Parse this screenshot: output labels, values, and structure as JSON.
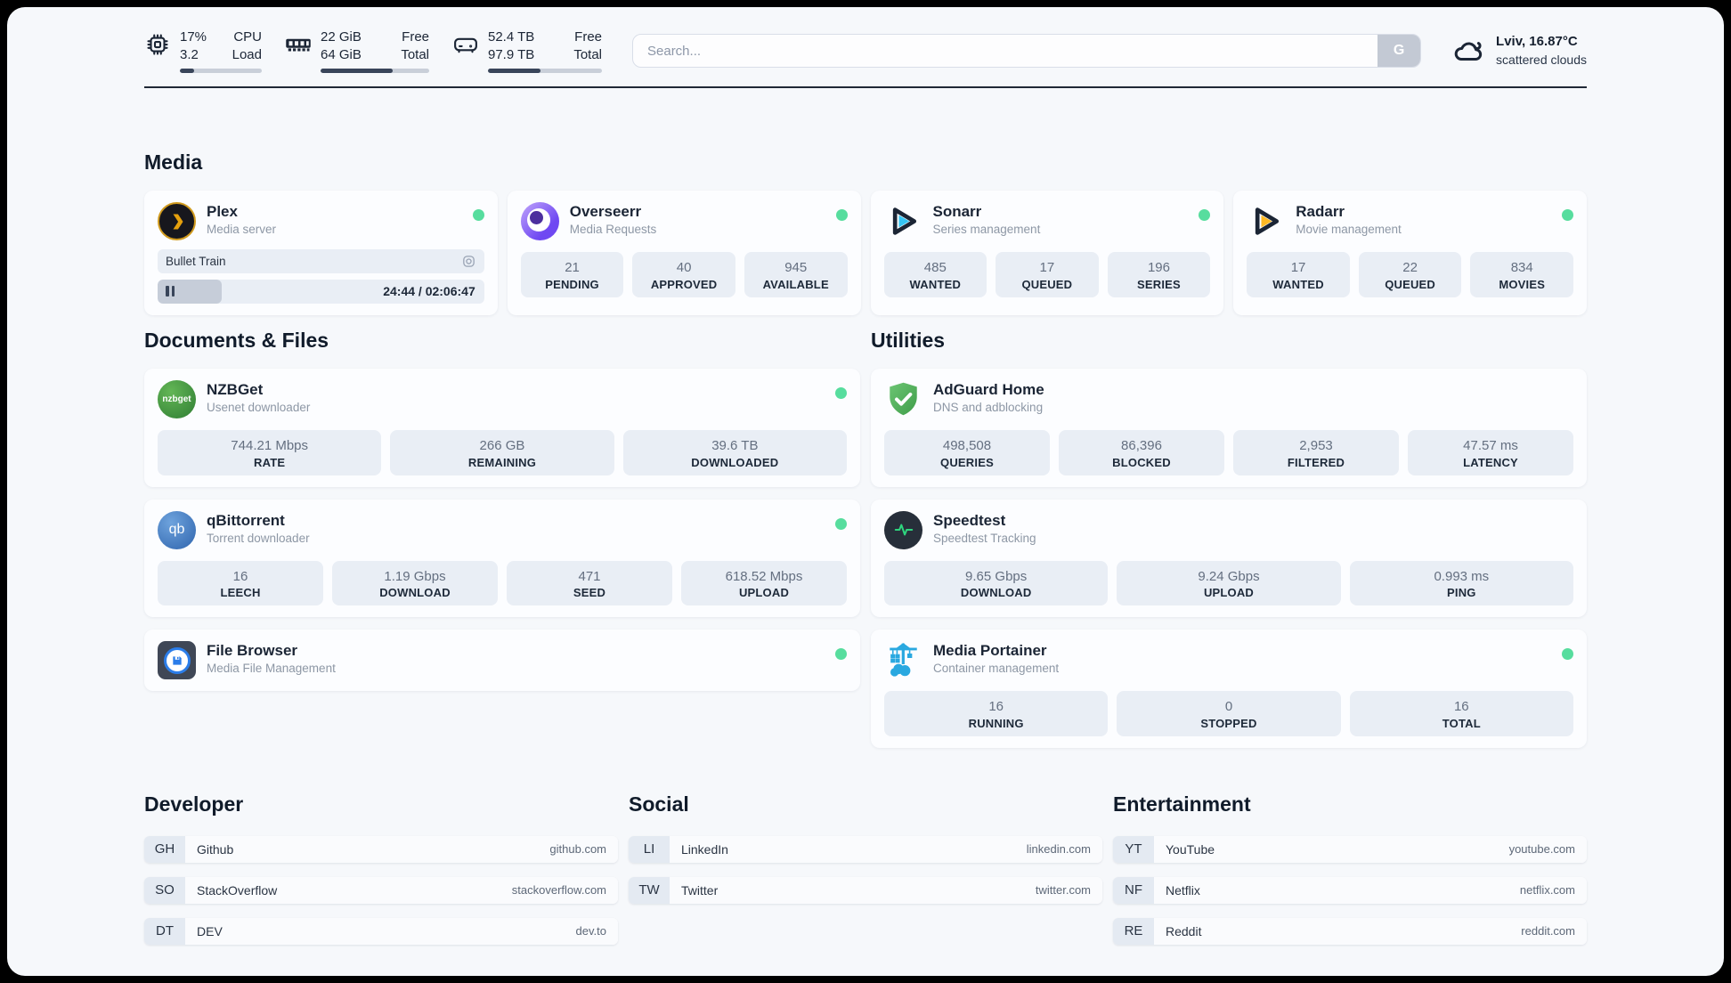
{
  "theme": {
    "page_bg": "#f6f8fb",
    "card_bg": "#fcfdff",
    "tile_bg": "#e9eef5",
    "status_online": "#57dd9e",
    "text_dark": "#1b2535",
    "text_muted": "#8d97a5",
    "progress_fill": "#39455a"
  },
  "header": {
    "cpu": {
      "line1_value": "17%",
      "line2_value": "3.2",
      "line1_label": "CPU",
      "line2_label": "Load",
      "progress_pct": 17
    },
    "ram": {
      "line1_value": "22 GiB",
      "line2_value": "64 GiB",
      "line1_label": "Free",
      "line2_label": "Total",
      "progress_pct": 66
    },
    "disk": {
      "line1_value": "52.4 TB",
      "line2_value": "97.9 TB",
      "line1_label": "Free",
      "line2_label": "Total",
      "progress_pct": 46
    },
    "search": {
      "placeholder": "Search...",
      "button_label": "G"
    },
    "weather": {
      "title": "Lviv, 16.87°C",
      "subtitle": "scattered clouds"
    }
  },
  "sections": {
    "media": {
      "title": "Media",
      "plex": {
        "name": "Plex",
        "subtitle": "Media server",
        "now_playing": "Bullet Train",
        "time_display": "24:44 / 02:06:47",
        "progress_pct": 19.5
      },
      "overseerr": {
        "name": "Overseerr",
        "subtitle": "Media Requests",
        "stats": [
          {
            "value": "21",
            "label": "PENDING"
          },
          {
            "value": "40",
            "label": "APPROVED"
          },
          {
            "value": "945",
            "label": "AVAILABLE"
          }
        ]
      },
      "sonarr": {
        "name": "Sonarr",
        "subtitle": "Series management",
        "stats": [
          {
            "value": "485",
            "label": "WANTED"
          },
          {
            "value": "17",
            "label": "QUEUED"
          },
          {
            "value": "196",
            "label": "SERIES"
          }
        ]
      },
      "radarr": {
        "name": "Radarr",
        "subtitle": "Movie management",
        "stats": [
          {
            "value": "17",
            "label": "WANTED"
          },
          {
            "value": "22",
            "label": "QUEUED"
          },
          {
            "value": "834",
            "label": "MOVIES"
          }
        ]
      }
    },
    "documents": {
      "title": "Documents & Files",
      "nzbget": {
        "name": "NZBGet",
        "subtitle": "Usenet downloader",
        "icon_text": "nzbget",
        "stats": [
          {
            "value": "744.21 Mbps",
            "label": "RATE"
          },
          {
            "value": "266 GB",
            "label": "REMAINING"
          },
          {
            "value": "39.6 TB",
            "label": "DOWNLOADED"
          }
        ]
      },
      "qbittorrent": {
        "name": "qBittorrent",
        "subtitle": "Torrent downloader",
        "icon_text": "qb",
        "stats": [
          {
            "value": "16",
            "label": "LEECH"
          },
          {
            "value": "1.19 Gbps",
            "label": "DOWNLOAD"
          },
          {
            "value": "471",
            "label": "SEED"
          },
          {
            "value": "618.52 Mbps",
            "label": "UPLOAD"
          }
        ]
      },
      "filebrowser": {
        "name": "File Browser",
        "subtitle": "Media File Management"
      }
    },
    "utilities": {
      "title": "Utilities",
      "adguard": {
        "name": "AdGuard Home",
        "subtitle": "DNS and adblocking",
        "stats": [
          {
            "value": "498,508",
            "label": "QUERIES"
          },
          {
            "value": "86,396",
            "label": "BLOCKED"
          },
          {
            "value": "2,953",
            "label": "FILTERED"
          },
          {
            "value": "47.57 ms",
            "label": "LATENCY"
          }
        ]
      },
      "speedtest": {
        "name": "Speedtest",
        "subtitle": "Speedtest Tracking",
        "stats": [
          {
            "value": "9.65 Gbps",
            "label": "DOWNLOAD"
          },
          {
            "value": "9.24 Gbps",
            "label": "UPLOAD"
          },
          {
            "value": "0.993 ms",
            "label": "PING"
          }
        ]
      },
      "portainer": {
        "name": "Media Portainer",
        "subtitle": "Container management",
        "stats": [
          {
            "value": "16",
            "label": "RUNNING"
          },
          {
            "value": "0",
            "label": "STOPPED"
          },
          {
            "value": "16",
            "label": "TOTAL"
          }
        ]
      }
    },
    "developer": {
      "title": "Developer",
      "links": [
        {
          "abbr": "GH",
          "name": "Github",
          "url": "github.com"
        },
        {
          "abbr": "SO",
          "name": "StackOverflow",
          "url": "stackoverflow.com"
        },
        {
          "abbr": "DT",
          "name": "DEV",
          "url": "dev.to"
        }
      ]
    },
    "social": {
      "title": "Social",
      "links": [
        {
          "abbr": "LI",
          "name": "LinkedIn",
          "url": "linkedin.com"
        },
        {
          "abbr": "TW",
          "name": "Twitter",
          "url": "twitter.com"
        }
      ]
    },
    "entertainment": {
      "title": "Entertainment",
      "links": [
        {
          "abbr": "YT",
          "name": "YouTube",
          "url": "youtube.com"
        },
        {
          "abbr": "NF",
          "name": "Netflix",
          "url": "netflix.com"
        },
        {
          "abbr": "RE",
          "name": "Reddit",
          "url": "reddit.com"
        }
      ]
    }
  }
}
